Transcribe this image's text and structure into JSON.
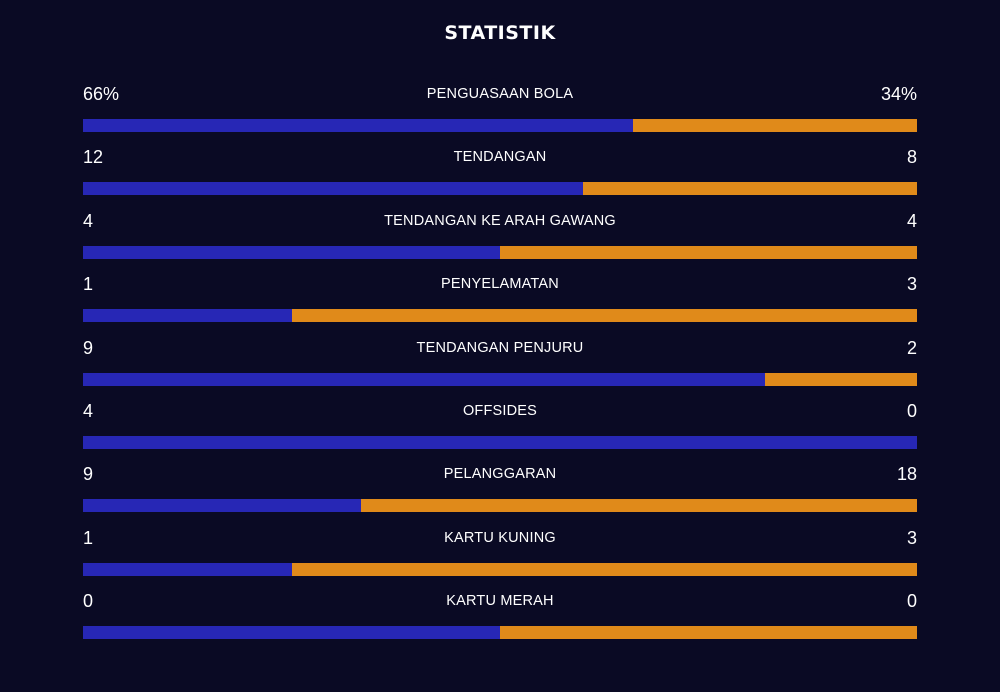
{
  "title": "STATISTIK",
  "colors": {
    "background": "#0a0a24",
    "home": "#2727b5",
    "away": "#e08a1a"
  },
  "stats": [
    {
      "label": "PENGUASAAN BOLA",
      "home": "66%",
      "away": "34%",
      "home_value": 66,
      "away_value": 34
    },
    {
      "label": "TENDANGAN",
      "home": "12",
      "away": "8",
      "home_value": 12,
      "away_value": 8
    },
    {
      "label": "TENDANGAN KE ARAH GAWANG",
      "home": "4",
      "away": "4",
      "home_value": 4,
      "away_value": 4
    },
    {
      "label": "PENYELAMATAN",
      "home": "1",
      "away": "3",
      "home_value": 1,
      "away_value": 3
    },
    {
      "label": "TENDANGAN PENJURU",
      "home": "9",
      "away": "2",
      "home_value": 9,
      "away_value": 2
    },
    {
      "label": "OFFSIDES",
      "home": "4",
      "away": "0",
      "home_value": 4,
      "away_value": 0
    },
    {
      "label": "PELANGGARAN",
      "home": "9",
      "away": "18",
      "home_value": 9,
      "away_value": 18
    },
    {
      "label": "KARTU KUNING",
      "home": "1",
      "away": "3",
      "home_value": 1,
      "away_value": 3
    },
    {
      "label": "KARTU MERAH",
      "home": "0",
      "away": "0",
      "home_value": 0,
      "away_value": 0
    }
  ]
}
